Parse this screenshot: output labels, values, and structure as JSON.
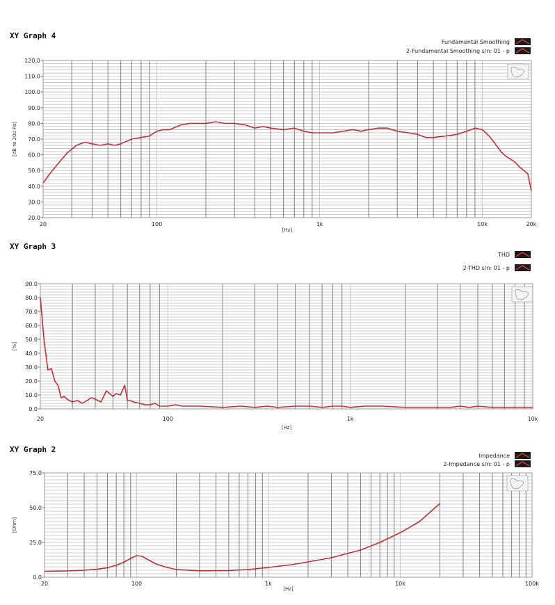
{
  "colors": {
    "curve": "#c0303a",
    "swatch_bg": "#1a1a1a",
    "swatch_line": "#d43b3b"
  },
  "chart_data": [
    {
      "type": "line",
      "title": "XY Graph 4",
      "legend": [
        "Fundamental Smoothing",
        "2-Fundamental Smoothing s/n: 01 - p"
      ],
      "xlabel": "[Hz]",
      "ylabel": "[dB re 20u Pa]",
      "xscale": "log",
      "xlim": [
        20,
        20000
      ],
      "ylim": [
        20,
        120
      ],
      "yticks": [
        "120.0",
        "110.0",
        "100.0",
        "90.0",
        "80.0",
        "70.0",
        "60.0",
        "50.0",
        "40.0",
        "30.0",
        "20.0"
      ],
      "xticks": [
        "20",
        "100",
        "1k",
        "10k",
        "20k"
      ],
      "series": [
        {
          "x": [
            20,
            22,
            25,
            28,
            32,
            36,
            40,
            45,
            50,
            55,
            60,
            70,
            80,
            90,
            100,
            110,
            120,
            140,
            160,
            180,
            200,
            230,
            260,
            300,
            350,
            400,
            450,
            500,
            600,
            700,
            800,
            900,
            1000,
            1200,
            1400,
            1600,
            1800,
            2000,
            2300,
            2600,
            3000,
            3500,
            4000,
            4500,
            5000,
            6000,
            7000,
            8000,
            9000,
            10000,
            11000,
            12000,
            13000,
            14000,
            15000,
            16000,
            17000,
            18000,
            19000,
            20000
          ],
          "y": [
            42,
            48,
            55,
            61,
            66,
            68,
            67,
            66,
            67,
            66,
            67,
            70,
            71,
            72,
            75,
            76,
            76,
            79,
            80,
            80,
            80,
            81,
            80,
            80,
            79,
            77,
            78,
            77,
            76,
            77,
            75,
            74,
            74,
            74,
            75,
            76,
            75,
            76,
            77,
            77,
            75,
            74,
            73,
            71,
            71,
            72,
            73,
            75,
            77,
            76,
            72,
            67,
            62,
            59,
            57,
            55,
            52,
            50,
            48,
            37
          ]
        }
      ]
    },
    {
      "type": "line",
      "title": "XY Graph 3",
      "legend": [
        "THD",
        "2-THD s/n: 01 - p"
      ],
      "xlabel": "[Hz]",
      "ylabel": "[%]",
      "xscale": "log",
      "xlim": [
        20,
        10000
      ],
      "ylim": [
        0,
        90
      ],
      "yticks": [
        "90.0",
        "80.0",
        "70.0",
        "60.0",
        "50.0",
        "40.0",
        "30.0",
        "20.0",
        "10.0",
        "0.0"
      ],
      "xticks": [
        "20",
        "100",
        "1k",
        "10k"
      ],
      "series": [
        {
          "x": [
            20,
            21,
            22,
            23,
            24,
            25,
            26,
            27,
            28,
            30,
            32,
            34,
            36,
            38,
            40,
            43,
            46,
            50,
            52,
            55,
            58,
            60,
            62,
            65,
            70,
            75,
            80,
            85,
            90,
            100,
            110,
            120,
            150,
            200,
            250,
            300,
            350,
            400,
            500,
            600,
            700,
            800,
            900,
            1000,
            1200,
            1500,
            2000,
            2500,
            3000,
            3500,
            4000,
            4500,
            5000,
            6000,
            7000,
            8000,
            10000
          ],
          "y": [
            80,
            48,
            28,
            29,
            20,
            17,
            8,
            9,
            7,
            5,
            6,
            4,
            6,
            8,
            7,
            5,
            13,
            9,
            11,
            10,
            17,
            6,
            6,
            5,
            4,
            3,
            3,
            4,
            2,
            2,
            3,
            2,
            2,
            1,
            2,
            1,
            2,
            1,
            2,
            2,
            1,
            2,
            2,
            1,
            2,
            2,
            1,
            1,
            1,
            1,
            2,
            1,
            2,
            1,
            1,
            1,
            1
          ]
        }
      ]
    },
    {
      "type": "line",
      "title": "XY Graph 2",
      "legend": [
        "Impedance",
        "2-Impedance s/n: 01 - p"
      ],
      "xlabel": "[Hz]",
      "ylabel": "[Ohm]",
      "xscale": "log",
      "xlim": [
        20,
        100000
      ],
      "ylim": [
        0,
        75
      ],
      "yticks": [
        "75.0",
        "50.0",
        "25.0",
        "0.0"
      ],
      "xticks": [
        "20",
        "100",
        "1k",
        "10k",
        "100k"
      ],
      "series": [
        {
          "x": [
            20,
            30,
            40,
            50,
            60,
            70,
            80,
            90,
            100,
            110,
            120,
            140,
            170,
            200,
            300,
            500,
            700,
            1000,
            1500,
            2000,
            3000,
            5000,
            7000,
            10000,
            14000,
            20000
          ],
          "y": [
            4.2,
            4.5,
            5,
            5.7,
            6.8,
            8.5,
            10.8,
            13.5,
            15.5,
            15,
            13,
            9.5,
            7,
            5.5,
            4.6,
            4.8,
            5.5,
            7,
            9,
            11,
            14,
            19.5,
            25,
            32,
            40,
            53
          ]
        }
      ]
    }
  ]
}
